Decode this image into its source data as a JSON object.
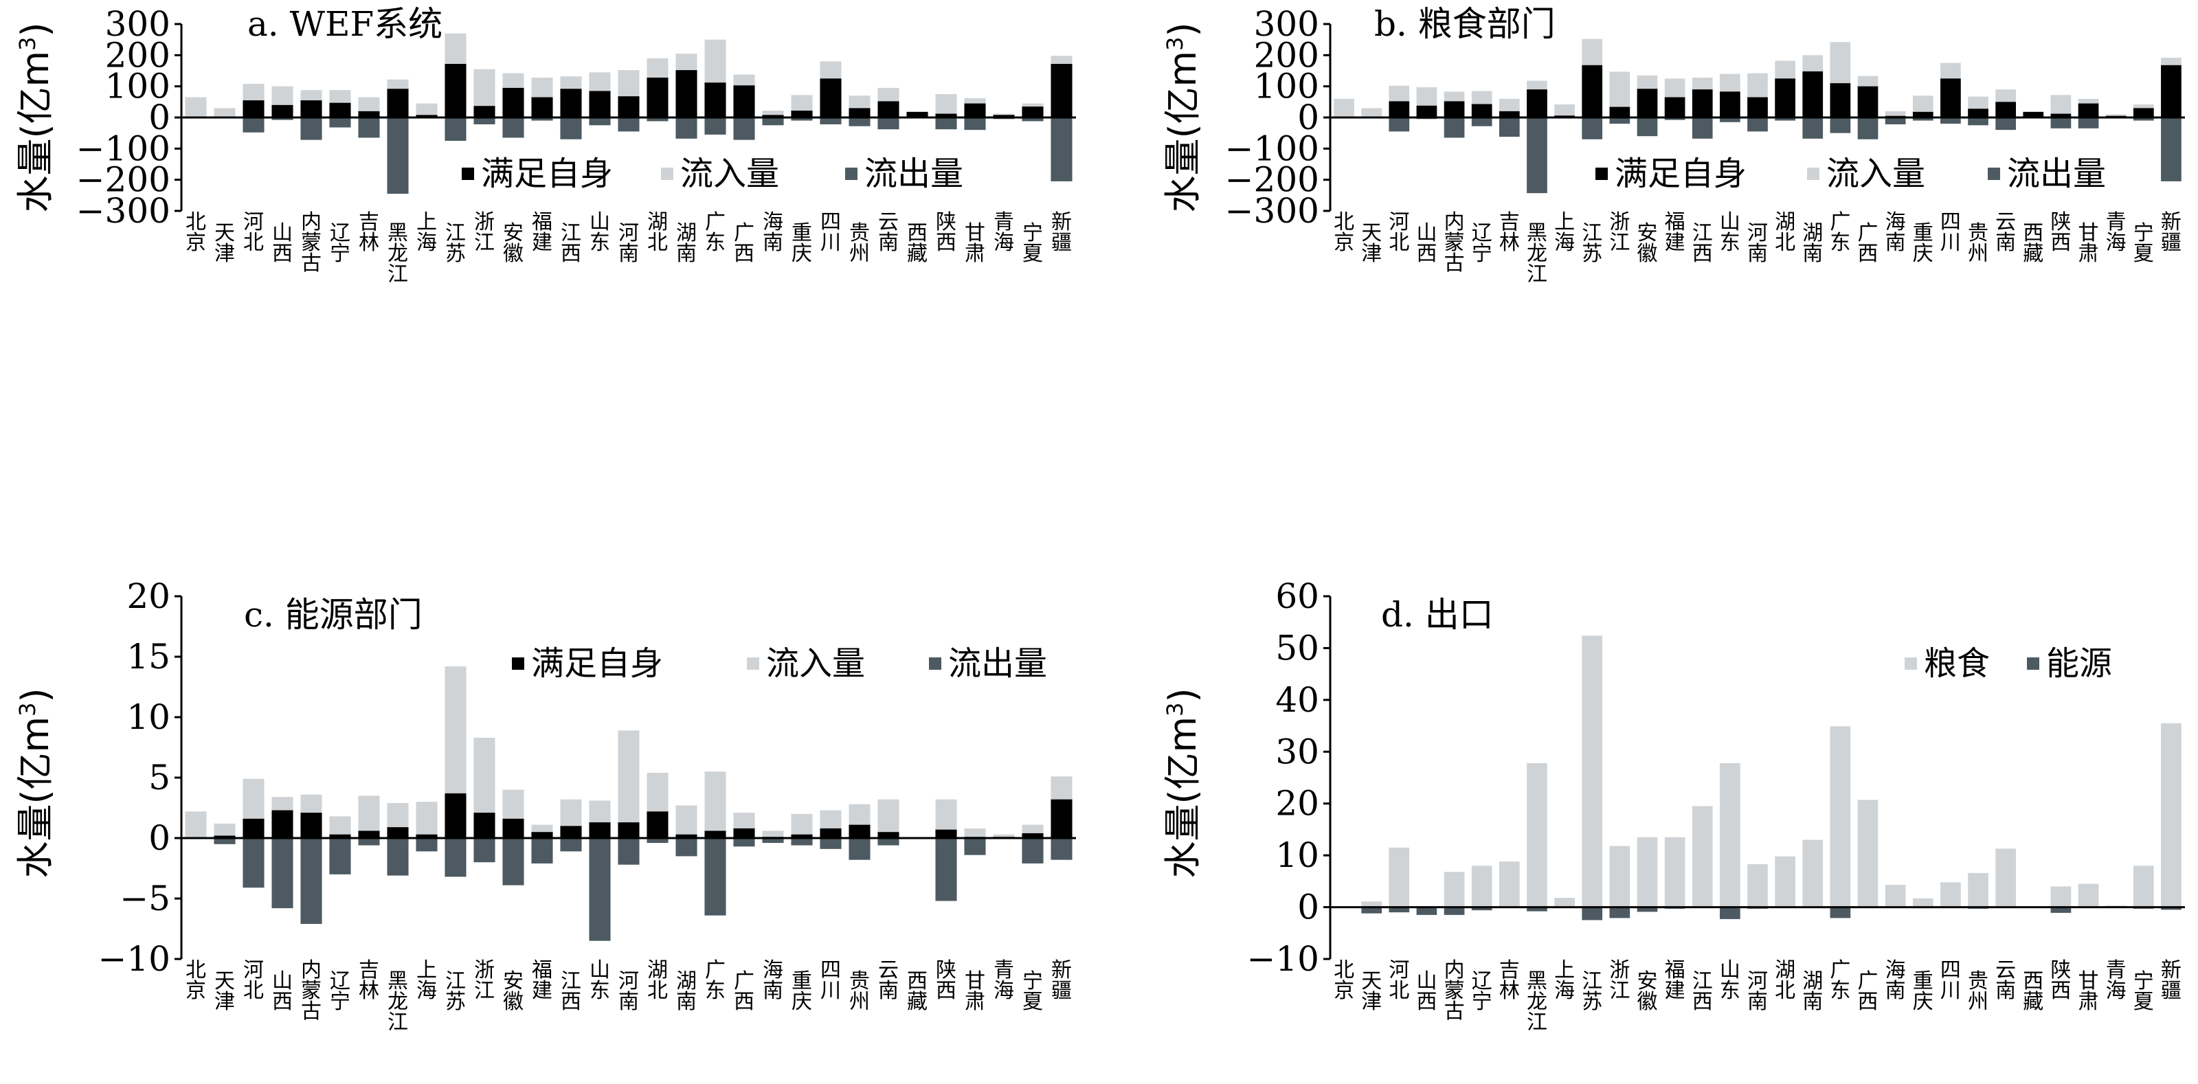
{
  "colors": {
    "self": "#000000",
    "inflow": "#d0d3d6",
    "outflow": "#4d5a62",
    "grain": "#d0d3d6",
    "energy": "#4d5a62"
  },
  "chart_data": [
    {
      "id": "a",
      "type": "bar",
      "title": "a. WEF系统",
      "ylabel": "水量(亿m³)",
      "ylabel_parts": [
        "水量(亿m",
        "3",
        ")"
      ],
      "ylim": [
        -300,
        300
      ],
      "ticks": [
        300,
        200,
        100,
        0,
        -100,
        -200,
        -300
      ],
      "tick_labels": [
        "300",
        "200",
        "100",
        "0",
        "−100",
        "−200",
        "−300"
      ],
      "legend": [
        "满足自身",
        "流入量",
        "流出量"
      ],
      "categories": [
        "北京",
        "天津",
        "河北",
        "山西",
        "内蒙古",
        "辽宁",
        "吉林",
        "黑龙江",
        "上海",
        "江苏",
        "浙江",
        "安徽",
        "福建",
        "江西",
        "山东",
        "河南",
        "湖北",
        "湖南",
        "广东",
        "广西",
        "海南",
        "重庆",
        "四川",
        "贵州",
        "云南",
        "西藏",
        "陕西",
        "甘肃",
        "青海",
        "宁夏",
        "新疆"
      ],
      "series": [
        {
          "name": "满足自身",
          "values": [
            0,
            3,
            55,
            40,
            55,
            47,
            20,
            92,
            8,
            172,
            37,
            95,
            65,
            92,
            85,
            68,
            128,
            152,
            112,
            103,
            8,
            22,
            125,
            30,
            52,
            18,
            12,
            45,
            8,
            35,
            172
          ]
        },
        {
          "name": "流入量",
          "values": [
            65,
            30,
            108,
            100,
            88,
            88,
            65,
            122,
            45,
            270,
            155,
            142,
            128,
            132,
            145,
            152,
            190,
            205,
            250,
            138,
            22,
            72,
            180,
            70,
            95,
            18,
            75,
            62,
            12,
            45,
            198
          ]
        },
        {
          "name": "流出量",
          "values": [
            0,
            0,
            -48,
            -8,
            -72,
            -32,
            -65,
            -245,
            -3,
            -75,
            -22,
            -65,
            -10,
            -70,
            -25,
            -45,
            -12,
            -68,
            -55,
            -72,
            -25,
            -10,
            -22,
            -28,
            -38,
            -2,
            -38,
            -40,
            -5,
            -12,
            -205
          ]
        }
      ]
    },
    {
      "id": "b",
      "type": "bar",
      "title": "b. 粮食部门",
      "ylabel": "水量(亿m³)",
      "ylabel_parts": [
        "水量(亿m",
        "3",
        ")"
      ],
      "ylim": [
        -300,
        300
      ],
      "ticks": [
        300,
        200,
        100,
        0,
        -100,
        -200,
        -300
      ],
      "tick_labels": [
        "300",
        "200",
        "100",
        "0",
        "−100",
        "−200",
        "−300"
      ],
      "legend": [
        "满足自身",
        "流入量",
        "流出量"
      ],
      "categories": [
        "北京",
        "天津",
        "河北",
        "山西",
        "内蒙古",
        "辽宁",
        "吉林",
        "黑龙江",
        "上海",
        "江苏",
        "浙江",
        "安徽",
        "福建",
        "江西",
        "山东",
        "河南",
        "湖北",
        "湖南",
        "广东",
        "广西",
        "海南",
        "重庆",
        "四川",
        "贵州",
        "云南",
        "西藏",
        "陕西",
        "甘肃",
        "青海",
        "宁夏",
        "新疆"
      ],
      "series": [
        {
          "name": "满足自身",
          "values": [
            0,
            3,
            52,
            38,
            52,
            43,
            20,
            90,
            6,
            168,
            34,
            92,
            65,
            90,
            83,
            65,
            125,
            148,
            110,
            100,
            5,
            18,
            125,
            28,
            50,
            18,
            12,
            45,
            5,
            30,
            168
          ]
        },
        {
          "name": "流入量",
          "values": [
            60,
            30,
            102,
            97,
            83,
            85,
            60,
            118,
            42,
            252,
            147,
            135,
            125,
            128,
            140,
            142,
            182,
            200,
            242,
            133,
            20,
            70,
            175,
            67,
            90,
            18,
            72,
            60,
            10,
            42,
            192
          ]
        },
        {
          "name": "流出量",
          "values": [
            0,
            0,
            -45,
            -5,
            -65,
            -28,
            -62,
            -243,
            -3,
            -70,
            -20,
            -60,
            -8,
            -68,
            -15,
            -45,
            -10,
            -68,
            -50,
            -70,
            -22,
            -10,
            -20,
            -25,
            -40,
            -2,
            -35,
            -35,
            -3,
            -10,
            -205
          ]
        }
      ]
    },
    {
      "id": "c",
      "type": "bar",
      "title": "c. 能源部门",
      "ylabel": "水量(亿m³)",
      "ylabel_parts": [
        "水量(亿m",
        "3",
        ")"
      ],
      "ylim": [
        -10,
        20
      ],
      "ticks": [
        20,
        15,
        10,
        5,
        0,
        -5,
        -10
      ],
      "tick_labels": [
        "20",
        "15",
        "10",
        "5",
        "0",
        "−5",
        "−10"
      ],
      "legend": [
        "满足自身",
        "流入量",
        "流出量"
      ],
      "categories": [
        "北京",
        "天津",
        "河北",
        "山西",
        "内蒙古",
        "辽宁",
        "吉林",
        "黑龙江",
        "上海",
        "江苏",
        "浙江",
        "安徽",
        "福建",
        "江西",
        "山东",
        "河南",
        "湖北",
        "湖南",
        "广东",
        "广西",
        "海南",
        "重庆",
        "四川",
        "贵州",
        "云南",
        "西藏",
        "陕西",
        "甘肃",
        "青海",
        "宁夏",
        "新疆"
      ],
      "series": [
        {
          "name": "满足自身",
          "values": [
            0,
            0.2,
            1.6,
            2.3,
            2.1,
            0.3,
            0.6,
            0.9,
            0.3,
            3.7,
            2.1,
            1.6,
            0.5,
            1.0,
            1.3,
            1.3,
            2.2,
            0.3,
            0.6,
            0.8,
            0.1,
            0.3,
            0.8,
            1.1,
            0.5,
            0,
            0.7,
            0.1,
            0.1,
            0.4,
            3.2
          ]
        },
        {
          "name": "流入量",
          "values": [
            2.2,
            1.2,
            4.9,
            3.4,
            3.6,
            1.8,
            3.5,
            2.9,
            3.0,
            14.2,
            8.3,
            4.0,
            1.1,
            3.2,
            3.1,
            8.9,
            5.4,
            2.7,
            5.5,
            2.1,
            0.6,
            2.0,
            2.3,
            2.8,
            3.2,
            0,
            3.2,
            0.8,
            0.3,
            1.1,
            5.1
          ]
        },
        {
          "name": "流出量",
          "values": [
            0,
            -0.5,
            -4.1,
            -5.8,
            -7.1,
            -3.0,
            -0.6,
            -3.1,
            -1.1,
            -3.2,
            -2.0,
            -3.9,
            -2.1,
            -1.1,
            -8.5,
            -2.2,
            -0.4,
            -1.5,
            -6.4,
            -0.7,
            -0.4,
            -0.6,
            -0.9,
            -1.8,
            -0.6,
            0,
            -5.2,
            -1.4,
            0,
            -2.1,
            -1.8
          ]
        }
      ]
    },
    {
      "id": "d",
      "type": "bar",
      "title": "d. 出口",
      "ylabel": "水量(亿m³)",
      "ylabel_parts": [
        "水量(亿m",
        "3",
        ")"
      ],
      "ylim": [
        -10,
        60
      ],
      "ticks": [
        60,
        50,
        40,
        30,
        20,
        10,
        0,
        -10
      ],
      "tick_labels": [
        "60",
        "50",
        "40",
        "30",
        "20",
        "10",
        "0",
        "−10"
      ],
      "legend": [
        "粮食",
        "能源"
      ],
      "categories": [
        "北京",
        "天津",
        "河北",
        "山西",
        "内蒙古",
        "辽宁",
        "吉林",
        "黑龙江",
        "上海",
        "江苏",
        "浙江",
        "安徽",
        "福建",
        "江西",
        "山东",
        "河南",
        "湖北",
        "湖南",
        "广东",
        "广西",
        "海南",
        "重庆",
        "四川",
        "贵州",
        "云南",
        "西藏",
        "陕西",
        "甘肃",
        "青海",
        "宁夏",
        "新疆"
      ],
      "series": [
        {
          "name": "粮食",
          "values": [
            0,
            1.1,
            11.5,
            0.2,
            6.8,
            8.0,
            8.8,
            27.8,
            1.8,
            52.4,
            11.8,
            13.5,
            13.5,
            19.5,
            27.8,
            8.3,
            9.8,
            13.0,
            34.9,
            20.7,
            4.3,
            1.7,
            4.8,
            6.6,
            11.3,
            0,
            4.0,
            4.5,
            0.3,
            8.0,
            35.5
          ]
        },
        {
          "name": "能源",
          "values": [
            0,
            -1.2,
            -1.0,
            -1.5,
            -1.5,
            -0.6,
            0,
            -0.8,
            0,
            -2.5,
            -2.1,
            -0.9,
            -0.3,
            0,
            -2.3,
            -0.3,
            0,
            0,
            -2.1,
            0,
            0,
            -0.2,
            0,
            -0.3,
            0,
            0,
            -1.1,
            0,
            0,
            -0.3,
            -0.5
          ]
        }
      ]
    }
  ]
}
